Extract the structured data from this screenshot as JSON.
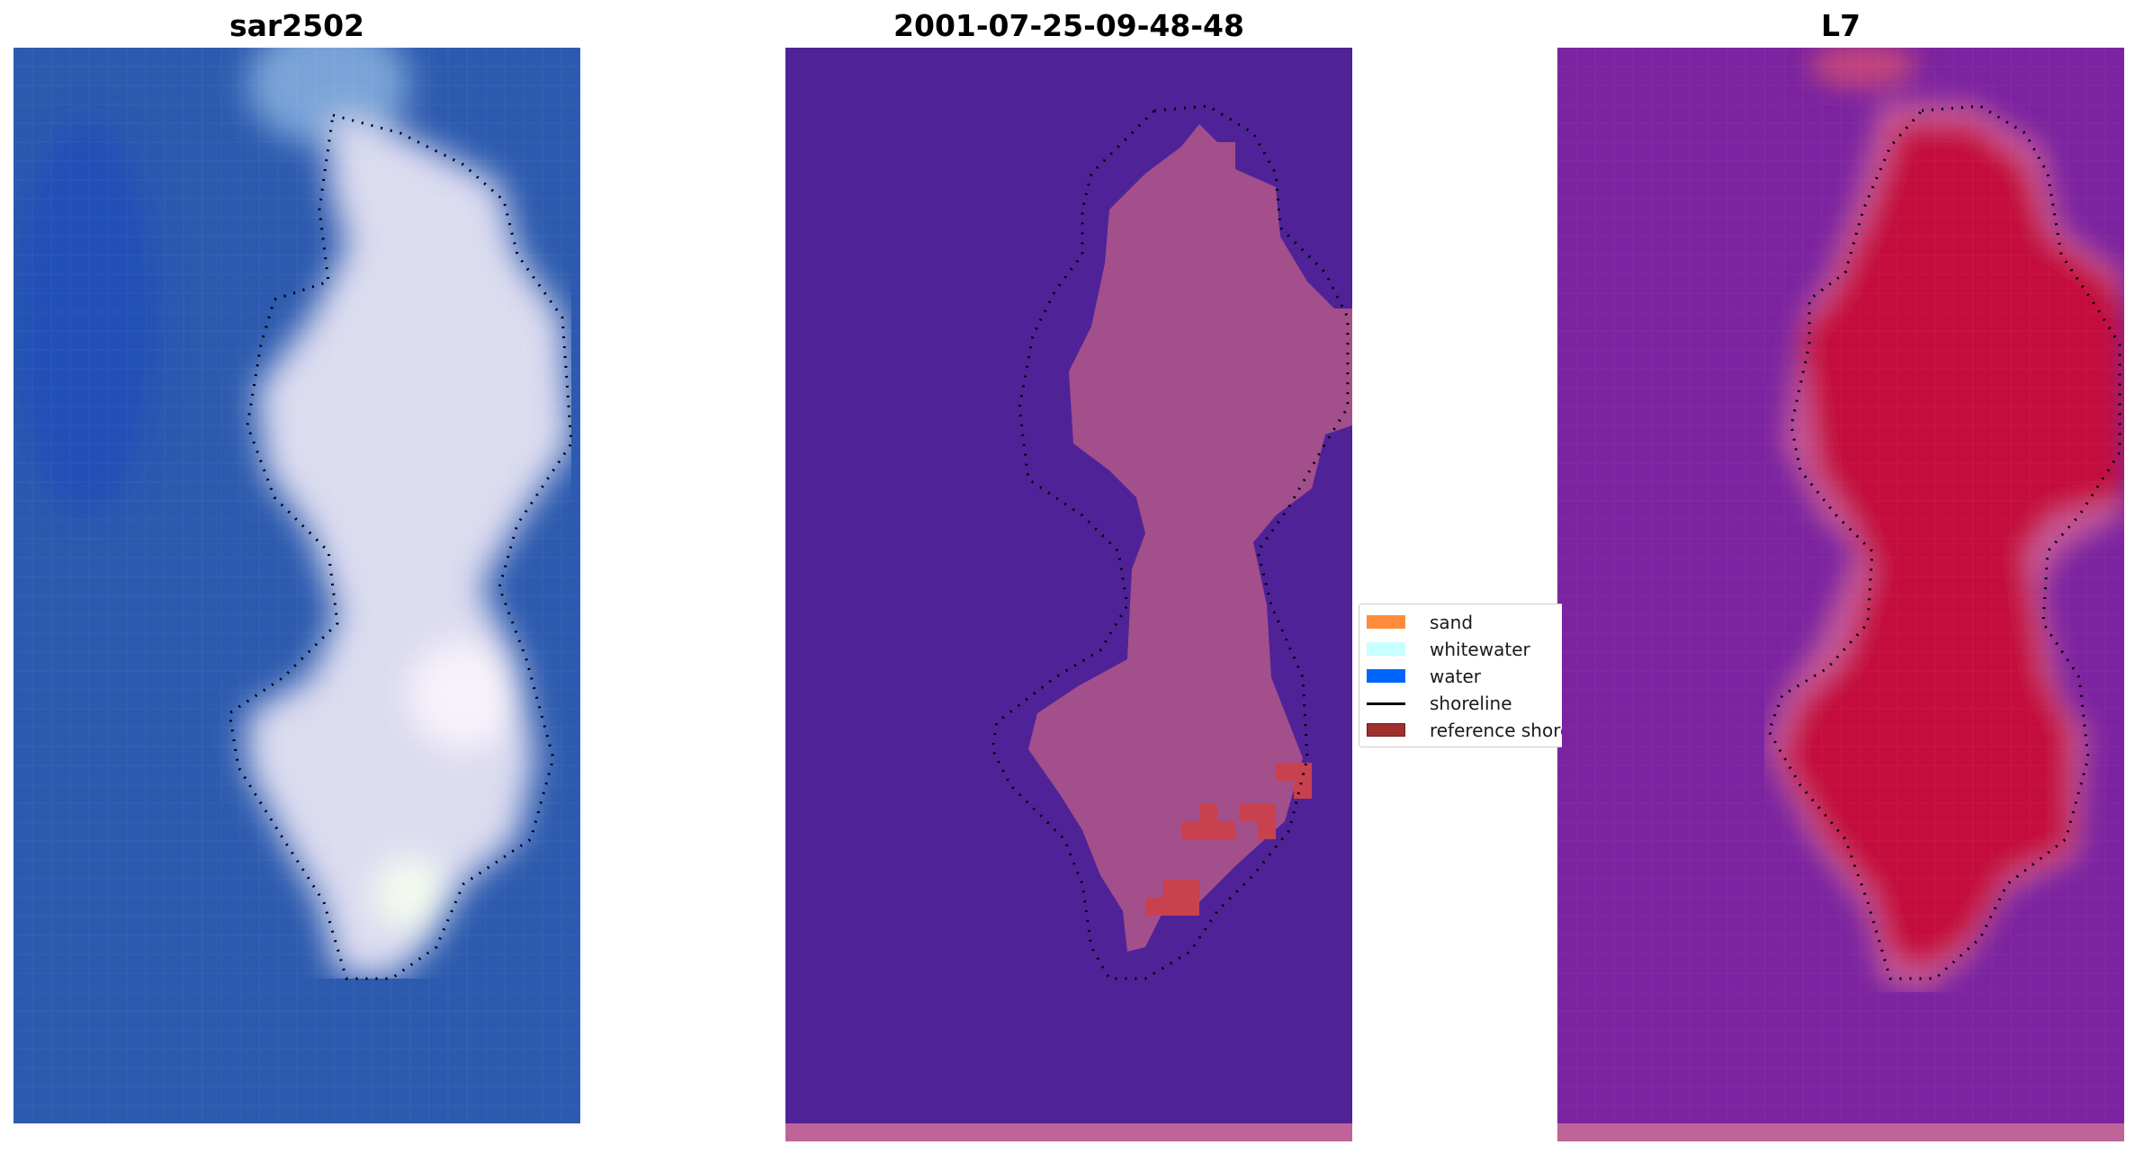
{
  "panels": [
    {
      "title": "sar2502",
      "kind": "rgb-image"
    },
    {
      "title": "2001-07-25-09-48-48",
      "kind": "classified-image"
    },
    {
      "title": "L7",
      "kind": "mndwi-image"
    }
  ],
  "legend": {
    "items": [
      {
        "label": "sand",
        "color": "#ff8c3c",
        "type": "patch"
      },
      {
        "label": "whitewater",
        "color": "#c8ffff",
        "type": "patch"
      },
      {
        "label": "water",
        "color": "#0064ff",
        "type": "patch"
      },
      {
        "label": "shoreline",
        "color": "#000000",
        "type": "line"
      },
      {
        "label": "reference shoreline",
        "color": "#9e3030",
        "type": "patch"
      }
    ]
  },
  "colors": {
    "sea_blue": "#2a5bb4",
    "sand_white": "#e6e6f5",
    "class_water": "#4f2397",
    "class_land": "#a54e8b",
    "class_reference": "#c44354",
    "mndwi_water": "#7a239e",
    "mndwi_land": "#c41040"
  }
}
